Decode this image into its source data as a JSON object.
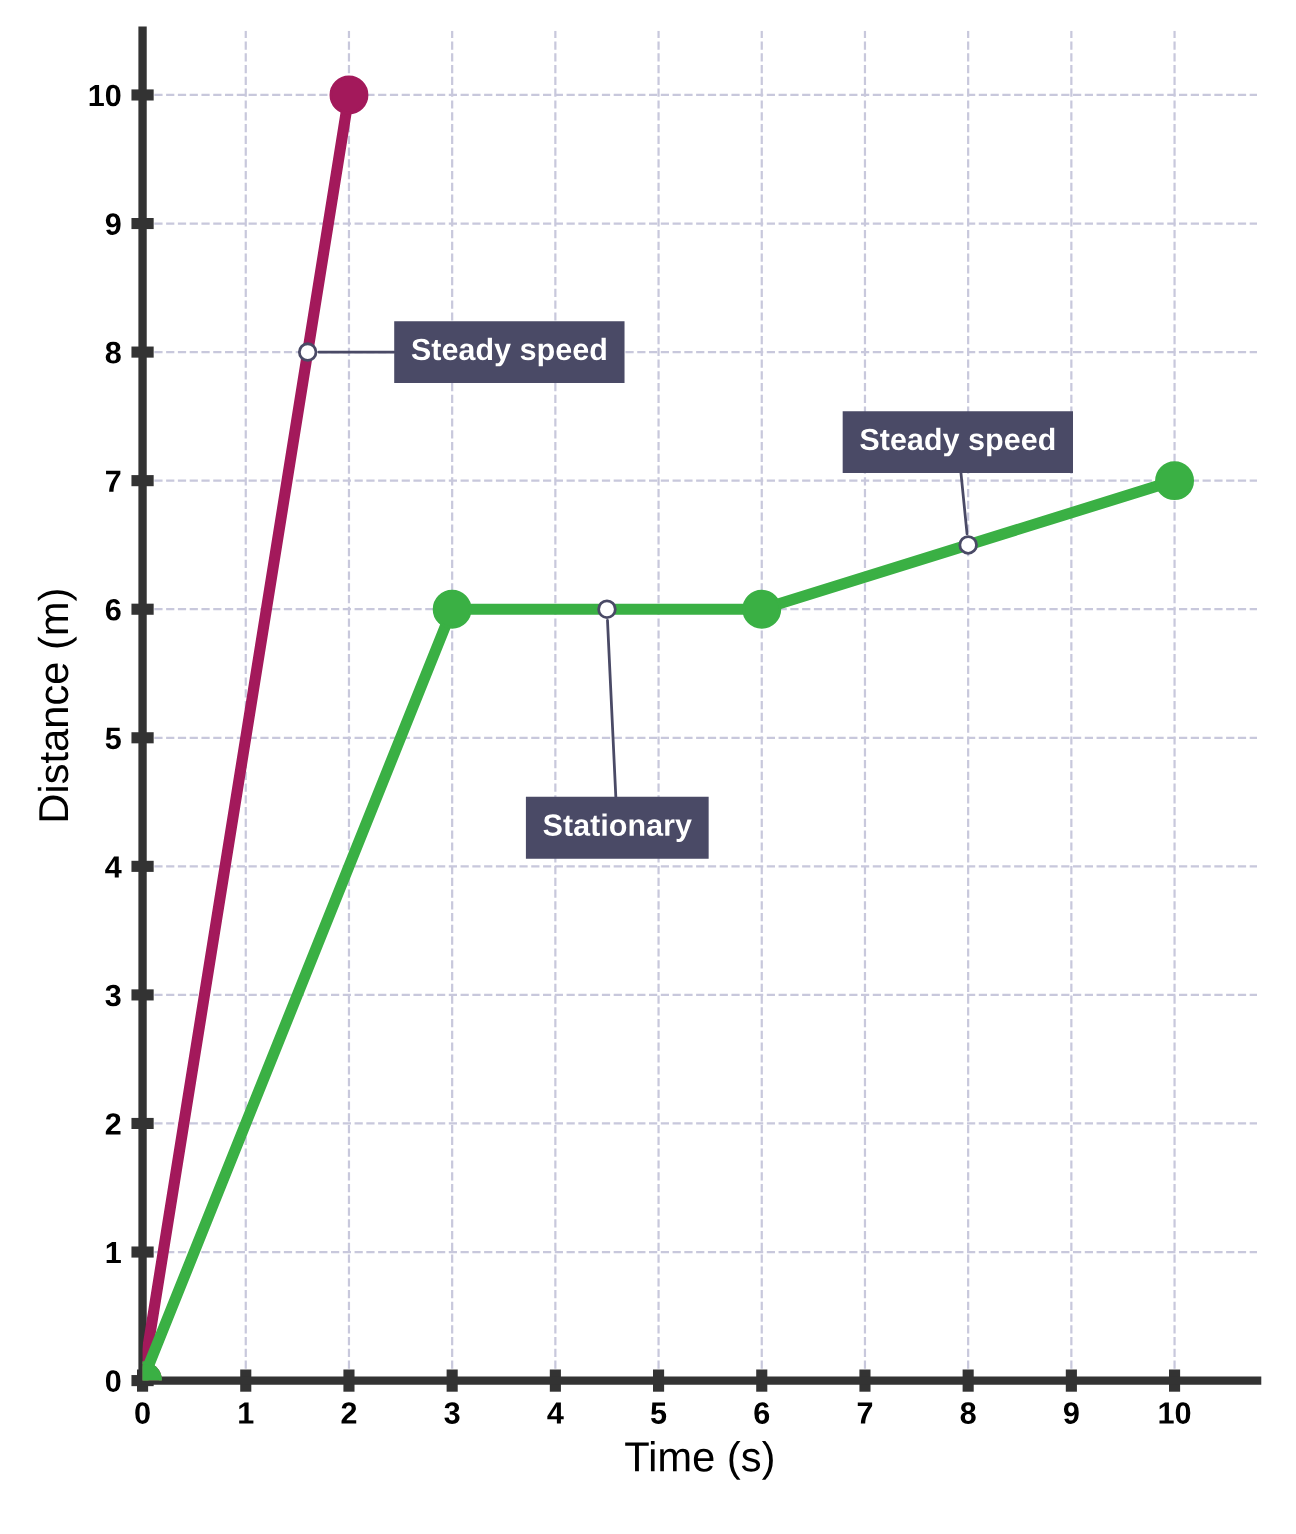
{
  "chart_data": {
    "type": "line",
    "xlabel": "Time (s)",
    "ylabel": "Distance (m)",
    "xlim": [
      0,
      10.8
    ],
    "ylim": [
      0,
      10.5
    ],
    "xticks": [
      0,
      1,
      2,
      3,
      4,
      5,
      6,
      7,
      8,
      9,
      10
    ],
    "yticks": [
      0,
      1,
      2,
      3,
      4,
      5,
      6,
      7,
      8,
      9,
      10
    ],
    "grid": true,
    "marker": "circle",
    "line_style": "solid",
    "series": [
      {
        "color": "#a3195b",
        "x": [
          0,
          2
        ],
        "values": [
          0,
          10
        ]
      },
      {
        "color": "#3ab044",
        "x": [
          0,
          3,
          6,
          10
        ],
        "values": [
          0,
          6,
          6,
          7
        ]
      }
    ],
    "annotations": [
      {
        "text": "Steady speed",
        "x": 1.6,
        "y": 8
      },
      {
        "text": "Stationary",
        "x": 4.5,
        "y": 6
      },
      {
        "text": "Steady speed",
        "x": 8,
        "y": 6.5
      }
    ]
  }
}
